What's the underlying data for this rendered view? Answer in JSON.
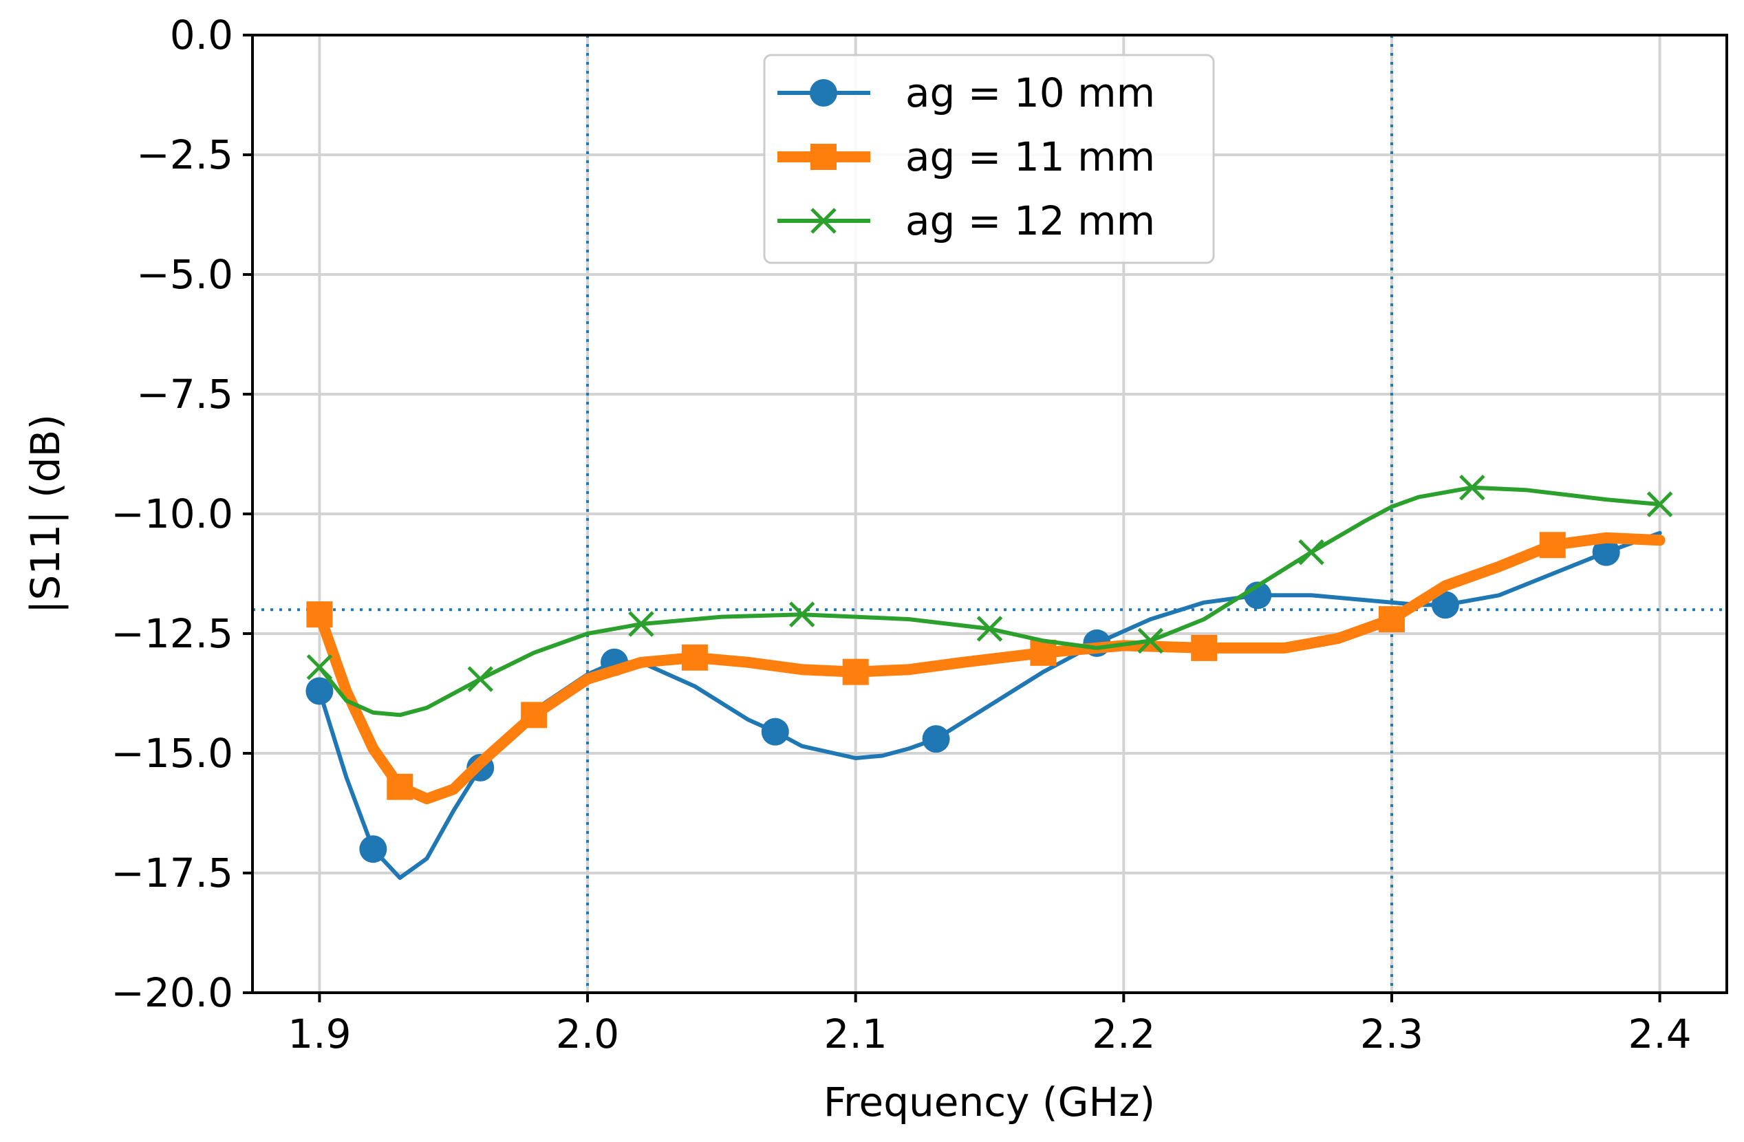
{
  "chart_data": {
    "type": "line",
    "title": "",
    "xlabel": "Frequency (GHz)",
    "ylabel": "|S11| (dB)",
    "xlim": [
      1.875,
      2.425
    ],
    "ylim": [
      -20.0,
      0.0
    ],
    "xticks": [
      1.9,
      2.0,
      2.1,
      2.2,
      2.3,
      2.4
    ],
    "xtick_labels": [
      "1.9",
      "2.0",
      "2.1",
      "2.2",
      "2.3",
      "2.4"
    ],
    "yticks": [
      0.0,
      -2.5,
      -5.0,
      -7.5,
      -10.0,
      -12.5,
      -15.0,
      -17.5,
      -20.0
    ],
    "ytick_labels": [
      "0.0",
      "−2.5",
      "−5.0",
      "−7.5",
      "−10.0",
      "−12.5",
      "−15.0",
      "−17.5",
      "−20.0"
    ],
    "grid": true,
    "legend_position": "top-center",
    "reference_lines": {
      "vertical": [
        2.0,
        2.3
      ],
      "horizontal": [
        -12.0
      ],
      "color": "#1f77b4",
      "style": "dotted"
    },
    "series": [
      {
        "name": "ag =  10 mm",
        "color": "#1f77b4",
        "marker": "circle",
        "curve_x": [
          1.9,
          1.91,
          1.92,
          1.93,
          1.94,
          1.95,
          1.96,
          1.98,
          2.0,
          2.01,
          2.02,
          2.04,
          2.06,
          2.07,
          2.08,
          2.1,
          2.11,
          2.12,
          2.13,
          2.15,
          2.17,
          2.19,
          2.21,
          2.23,
          2.25,
          2.27,
          2.29,
          2.31,
          2.32,
          2.34,
          2.36,
          2.38,
          2.4
        ],
        "curve_y": [
          -13.7,
          -15.5,
          -17.0,
          -17.6,
          -17.2,
          -16.2,
          -15.3,
          -14.1,
          -13.35,
          -13.1,
          -13.1,
          -13.6,
          -14.3,
          -14.55,
          -14.85,
          -15.1,
          -15.05,
          -14.9,
          -14.7,
          -14.0,
          -13.3,
          -12.7,
          -12.2,
          -11.85,
          -11.7,
          -11.7,
          -11.8,
          -11.9,
          -11.9,
          -11.7,
          -11.25,
          -10.8,
          -10.4
        ],
        "marker_x": [
          1.9,
          1.92,
          1.96,
          2.01,
          2.07,
          2.13,
          2.19,
          2.25,
          2.32,
          2.38
        ],
        "marker_y": [
          -13.7,
          -17.0,
          -15.3,
          -13.1,
          -14.55,
          -14.7,
          -12.7,
          -11.7,
          -11.9,
          -10.8
        ]
      },
      {
        "name": "ag =  11 mm",
        "color": "#ff7f0e",
        "marker": "square",
        "curve_x": [
          1.9,
          1.91,
          1.92,
          1.93,
          1.94,
          1.95,
          1.96,
          1.98,
          2.0,
          2.02,
          2.04,
          2.06,
          2.08,
          2.1,
          2.12,
          2.14,
          2.17,
          2.2,
          2.23,
          2.26,
          2.28,
          2.3,
          2.32,
          2.34,
          2.36,
          2.38,
          2.4
        ],
        "curve_y": [
          -12.1,
          -13.7,
          -14.9,
          -15.7,
          -15.95,
          -15.75,
          -15.2,
          -14.2,
          -13.45,
          -13.1,
          -13.0,
          -13.1,
          -13.25,
          -13.3,
          -13.25,
          -13.1,
          -12.9,
          -12.75,
          -12.8,
          -12.8,
          -12.6,
          -12.2,
          -11.5,
          -11.1,
          -10.65,
          -10.5,
          -10.55
        ],
        "marker_x": [
          1.9,
          1.93,
          1.98,
          2.04,
          2.1,
          2.17,
          2.23,
          2.3,
          2.36
        ],
        "marker_y": [
          -12.1,
          -15.7,
          -14.2,
          -13.0,
          -13.3,
          -12.9,
          -12.8,
          -12.2,
          -10.65
        ]
      },
      {
        "name": "ag =  12 mm",
        "color": "#2ca02c",
        "marker": "x",
        "curve_x": [
          1.9,
          1.91,
          1.92,
          1.93,
          1.94,
          1.96,
          1.98,
          2.0,
          2.02,
          2.05,
          2.08,
          2.1,
          2.12,
          2.15,
          2.17,
          2.19,
          2.21,
          2.23,
          2.25,
          2.27,
          2.29,
          2.3,
          2.31,
          2.33,
          2.35,
          2.38,
          2.4
        ],
        "curve_y": [
          -13.2,
          -13.9,
          -14.15,
          -14.2,
          -14.05,
          -13.45,
          -12.9,
          -12.5,
          -12.3,
          -12.15,
          -12.1,
          -12.15,
          -12.2,
          -12.4,
          -12.65,
          -12.8,
          -12.65,
          -12.2,
          -11.5,
          -10.8,
          -10.15,
          -9.85,
          -9.65,
          -9.45,
          -9.5,
          -9.7,
          -9.8
        ],
        "marker_x": [
          1.9,
          1.96,
          2.02,
          2.08,
          2.15,
          2.21,
          2.27,
          2.33,
          2.4
        ],
        "marker_y": [
          -13.2,
          -13.45,
          -12.3,
          -12.1,
          -12.4,
          -12.65,
          -10.8,
          -9.45,
          -9.8
        ]
      }
    ]
  }
}
